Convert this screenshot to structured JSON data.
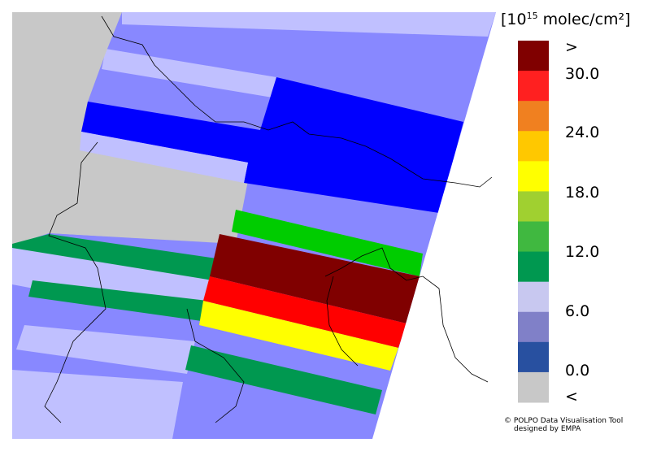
{
  "legend": {
    "title_prefix": "[10",
    "title_exponent": "15",
    "title_suffix": " molec/cm²]",
    "labels": [
      ">",
      "30.0",
      "24.0",
      "18.0",
      "12.0",
      "6.0",
      "0.0",
      "<"
    ],
    "colors": [
      "#800000",
      "#ff2020",
      "#f08020",
      "#ffc800",
      "#ffff00",
      "#a0d030",
      "#40b840",
      "#009850",
      "#c8c8f0",
      "#8080c8",
      "#2850a0",
      "#c8c8c8"
    ]
  },
  "credit": {
    "line1": "© POLPO Data Visualisation Tool",
    "line2": "designed by EMPA"
  }
}
